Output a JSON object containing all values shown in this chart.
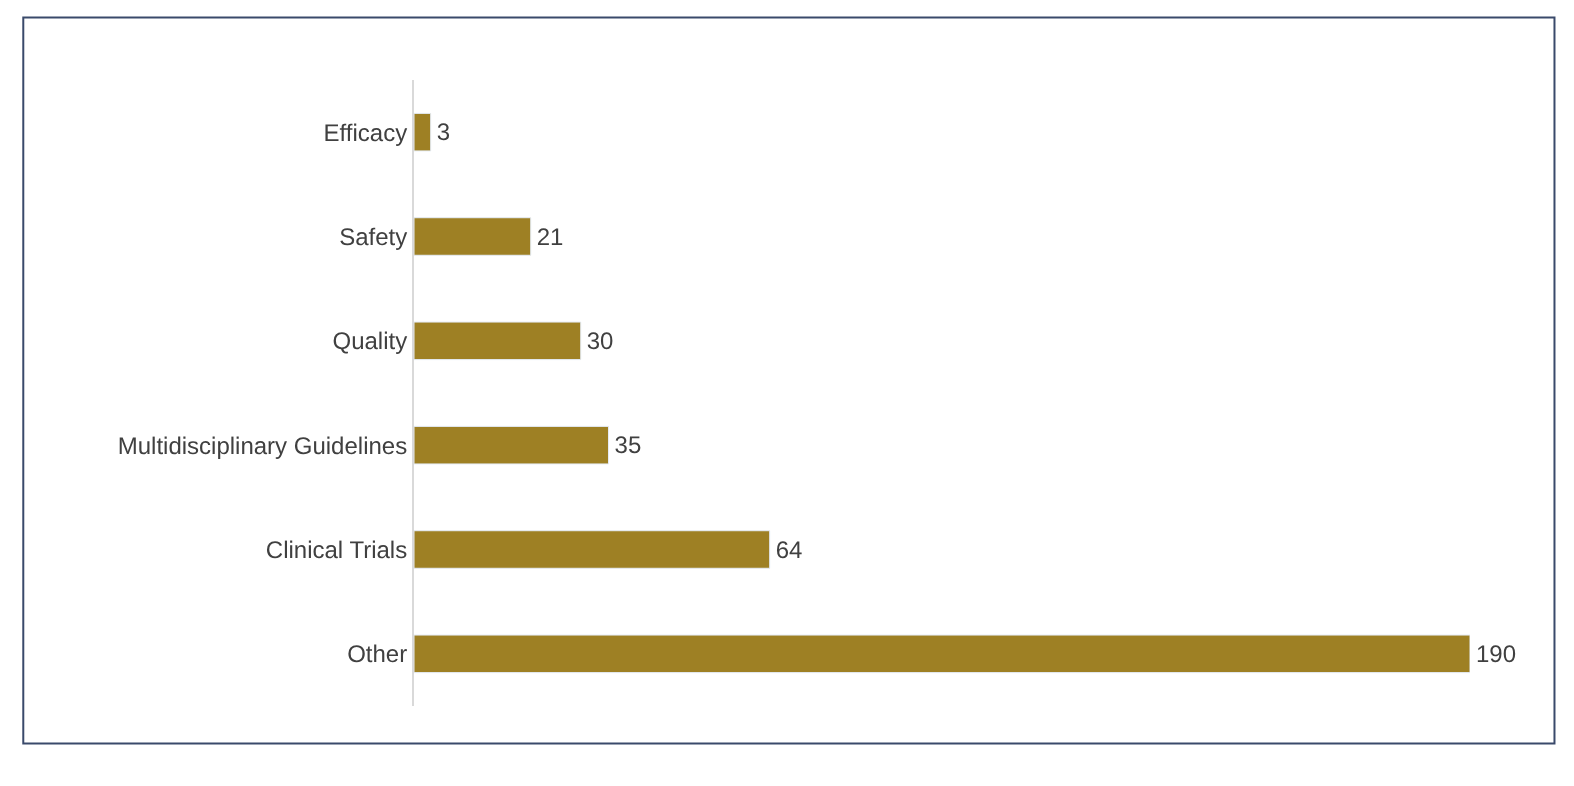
{
  "chart_data": {
    "type": "bar",
    "orientation": "horizontal",
    "categories": [
      "Efficacy",
      "Safety",
      "Quality",
      "Multidisciplinary Guidelines",
      "Clinical Trials",
      "Other"
    ],
    "values": [
      3,
      21,
      30,
      35,
      64,
      190
    ],
    "color": "#9e8024",
    "data_labels": true,
    "legend": false
  }
}
